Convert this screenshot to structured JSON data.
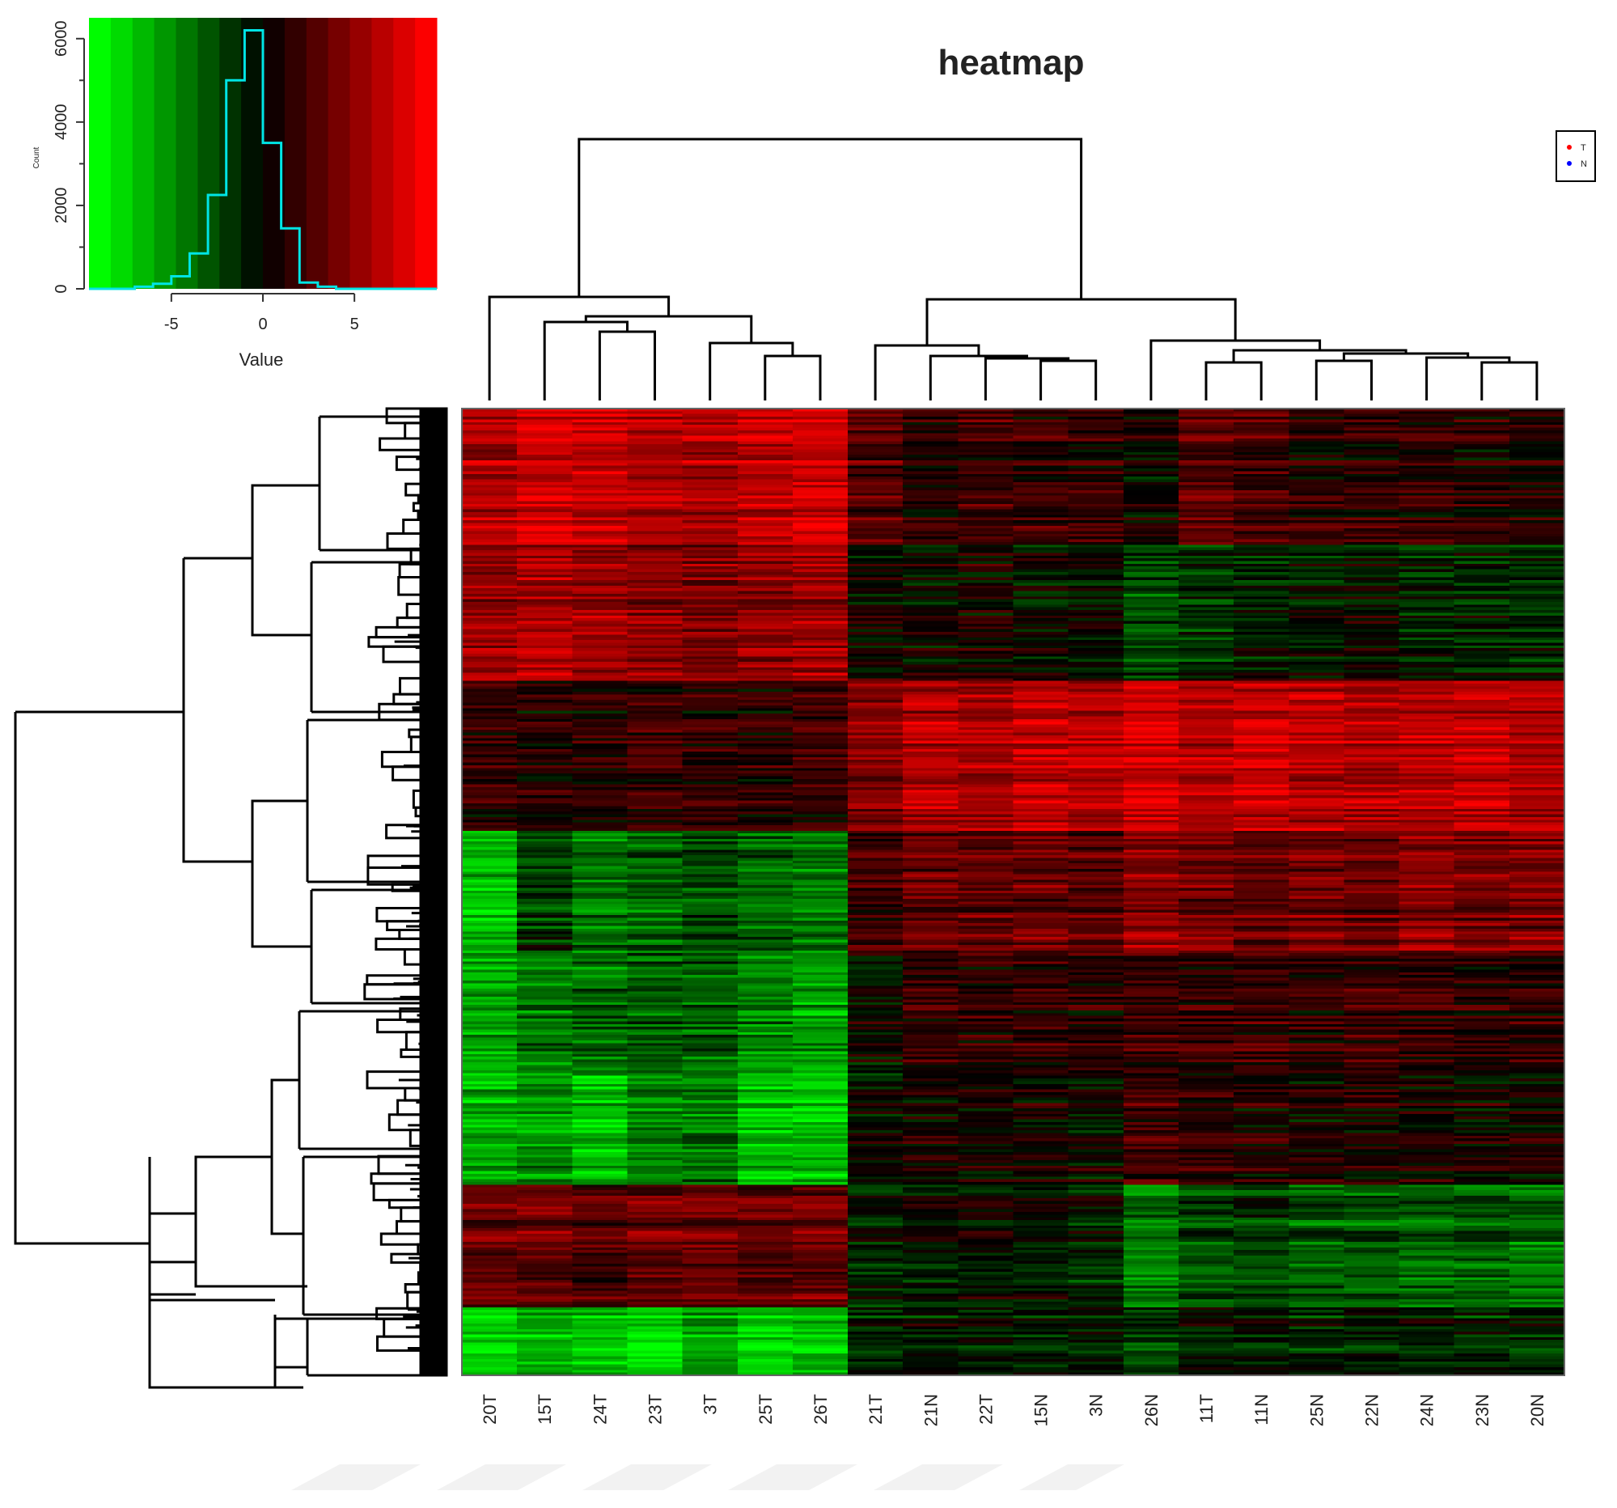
{
  "chart_data": [
    {
      "type": "heatmap",
      "title": "heatmap",
      "columns": [
        {
          "label": "20T",
          "group": "T"
        },
        {
          "label": "15T",
          "group": "T"
        },
        {
          "label": "24T",
          "group": "T"
        },
        {
          "label": "23T",
          "group": "T"
        },
        {
          "label": "3T",
          "group": "T"
        },
        {
          "label": "25T",
          "group": "T"
        },
        {
          "label": "26T",
          "group": "T"
        },
        {
          "label": "21T",
          "group": "T"
        },
        {
          "label": "21N",
          "group": "N"
        },
        {
          "label": "22T",
          "group": "T"
        },
        {
          "label": "15N",
          "group": "N"
        },
        {
          "label": "3N",
          "group": "N"
        },
        {
          "label": "26N",
          "group": "N"
        },
        {
          "label": "11T",
          "group": "T"
        },
        {
          "label": "11N",
          "group": "N"
        },
        {
          "label": "25N",
          "group": "N"
        },
        {
          "label": "22N",
          "group": "N"
        },
        {
          "label": "24N",
          "group": "N"
        },
        {
          "label": "23N",
          "group": "N"
        },
        {
          "label": "20N",
          "group": "N"
        }
      ],
      "legend": {
        "placement": "top-right",
        "entries": [
          {
            "label": "T",
            "color": "#ff0000"
          },
          {
            "label": "N",
            "color": "#0000ff"
          }
        ]
      },
      "row_blocks": [
        {
          "rows": 50,
          "values": [
            2.5,
            3.0,
            2.8,
            2.6,
            2.4,
            2.7,
            3.0,
            1.2,
            0.6,
            0.9,
            0.8,
            0.7,
            0.2,
            1.3,
            1.0,
            0.6,
            0.7,
            0.6,
            0.5,
            0.4
          ]
        },
        {
          "rows": 50,
          "values": [
            2.2,
            2.5,
            2.2,
            2.0,
            1.8,
            2.0,
            2.2,
            0.2,
            0.1,
            0.3,
            0.0,
            0.0,
            -1.0,
            -0.6,
            -0.3,
            -0.2,
            0.1,
            -0.4,
            -0.3,
            -0.5
          ]
        },
        {
          "rows": 55,
          "values": [
            0.5,
            0.3,
            0.4,
            0.6,
            0.5,
            0.4,
            0.6,
            1.6,
            2.4,
            2.1,
            2.6,
            2.3,
            3.0,
            2.4,
            2.7,
            2.4,
            2.3,
            2.5,
            2.6,
            2.4
          ]
        },
        {
          "rows": 45,
          "values": [
            -2.6,
            -0.8,
            -1.6,
            -1.4,
            -1.0,
            -1.4,
            -1.6,
            0.8,
            1.4,
            1.3,
            1.4,
            1.2,
            2.0,
            1.5,
            1.3,
            1.7,
            1.5,
            1.9,
            1.7,
            1.8
          ]
        },
        {
          "rows": 45,
          "values": [
            -2.2,
            -1.6,
            -1.4,
            -1.2,
            -1.3,
            -1.8,
            -2.2,
            0.0,
            0.8,
            0.7,
            0.8,
            0.7,
            0.9,
            0.8,
            0.9,
            0.7,
            0.9,
            0.8,
            0.7,
            0.6
          ]
        },
        {
          "rows": 40,
          "values": [
            -2.4,
            -2.0,
            -2.6,
            -1.8,
            -1.6,
            -2.6,
            -2.8,
            0.0,
            0.3,
            0.2,
            0.2,
            0.1,
            1.0,
            0.6,
            0.4,
            0.3,
            0.4,
            0.3,
            0.2,
            0.3
          ]
        },
        {
          "rows": 45,
          "values": [
            1.4,
            1.6,
            1.2,
            1.5,
            1.6,
            1.3,
            1.5,
            -0.3,
            -0.2,
            0.0,
            -0.3,
            -0.4,
            -1.6,
            -1.0,
            -0.8,
            -1.2,
            -1.2,
            -1.4,
            -1.2,
            -1.6
          ]
        },
        {
          "rows": 25,
          "values": [
            -3.2,
            -2.6,
            -2.8,
            -3.4,
            -2.2,
            -3.0,
            -2.8,
            -0.6,
            -0.3,
            -0.4,
            -0.5,
            -0.3,
            -0.8,
            -0.3,
            -0.2,
            -0.5,
            -0.4,
            -0.3,
            -0.5,
            -0.6
          ]
        }
      ]
    },
    {
      "type": "histogram",
      "title": "",
      "xlabel": "Value",
      "ylabel": "Count",
      "xlim": [
        -9.5,
        9.5
      ],
      "ylim": [
        0,
        6500
      ],
      "xticks": [
        "-5",
        "0",
        "5"
      ],
      "yticks": [
        "0",
        "2000",
        "4000",
        "6000"
      ],
      "bins": [
        -8,
        -7,
        -6,
        -5,
        -4,
        -3,
        -2,
        -1,
        0,
        1,
        2,
        3,
        4,
        5,
        6,
        7,
        8
      ],
      "counts": [
        0,
        50,
        120,
        300,
        850,
        2250,
        5000,
        6200,
        3500,
        1450,
        150,
        50,
        0,
        0,
        0,
        0
      ],
      "color_scale": [
        -9,
        9
      ],
      "line_color": "#00e5e5"
    }
  ]
}
